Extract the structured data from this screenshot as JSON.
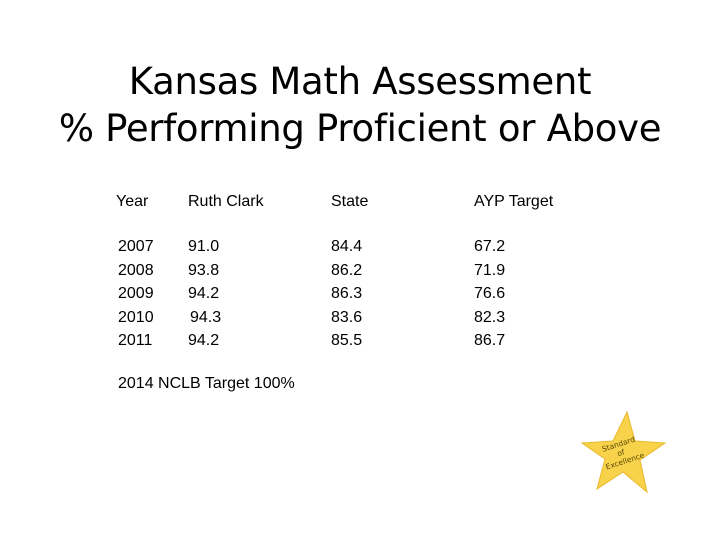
{
  "title": {
    "line1": "Kansas Math Assessment",
    "line2": "% Performing Proficient or Above"
  },
  "table": {
    "headers": [
      "Year",
      "Ruth Clark",
      "State",
      "AYP Target"
    ],
    "years": [
      "2007",
      "2008",
      "2009",
      "2010",
      "2011"
    ],
    "ruth_clark": [
      "91.0",
      "93.8",
      "94.2",
      "94.3",
      "94.2"
    ],
    "state": [
      "84.4",
      "86.2",
      "86.3",
      "83.6",
      "85.5"
    ],
    "ayp_target": [
      "67.2",
      "71.9",
      "76.6",
      "82.3",
      "86.7"
    ]
  },
  "note": "2014  NCLB Target 100%",
  "badge": {
    "line1": "Standard",
    "line2": "of",
    "line3": "Excellence",
    "color": "#f7d24a"
  }
}
